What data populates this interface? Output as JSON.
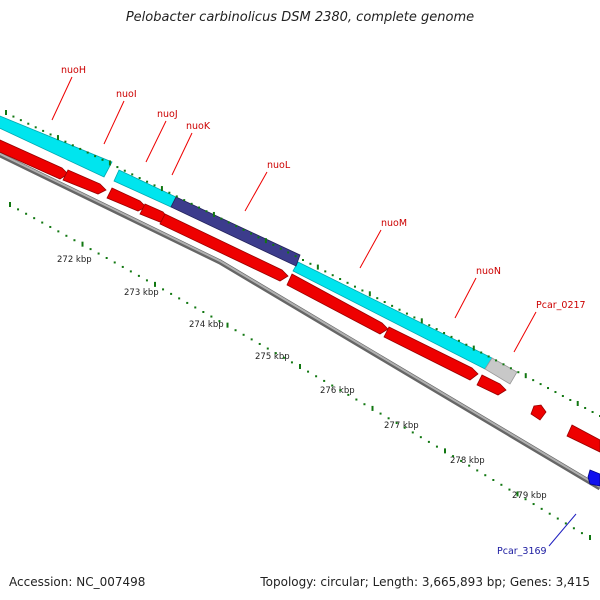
{
  "title": "Pelobacter carbinolicus DSM 2380, complete genome",
  "footer": {
    "accession": "Accession: NC_007498",
    "summary": "Topology: circular; Length: 3,665,893 bp; Genes: 3,415"
  },
  "colors": {
    "operon": "#00e5ee",
    "highlight": "#3c3c8c",
    "gene": "#ee0000",
    "pseudo": "#c8c8c8",
    "backbone": "#8c8c8c",
    "tick": "#117711",
    "label_red": "#cc0000",
    "label_blue": "#1a1aa0"
  },
  "gene_labels": [
    "nuoH",
    "nuoI",
    "nuoJ",
    "nuoK",
    "nuoL",
    "nuoM",
    "nuoN",
    "Pcar_0217",
    "Pcar_3169"
  ],
  "kbp_labels": [
    "272 kbp",
    "273 kbp",
    "274 kbp",
    "275 kbp",
    "276 kbp",
    "277 kbp",
    "278 kbp",
    "279 kbp"
  ]
}
